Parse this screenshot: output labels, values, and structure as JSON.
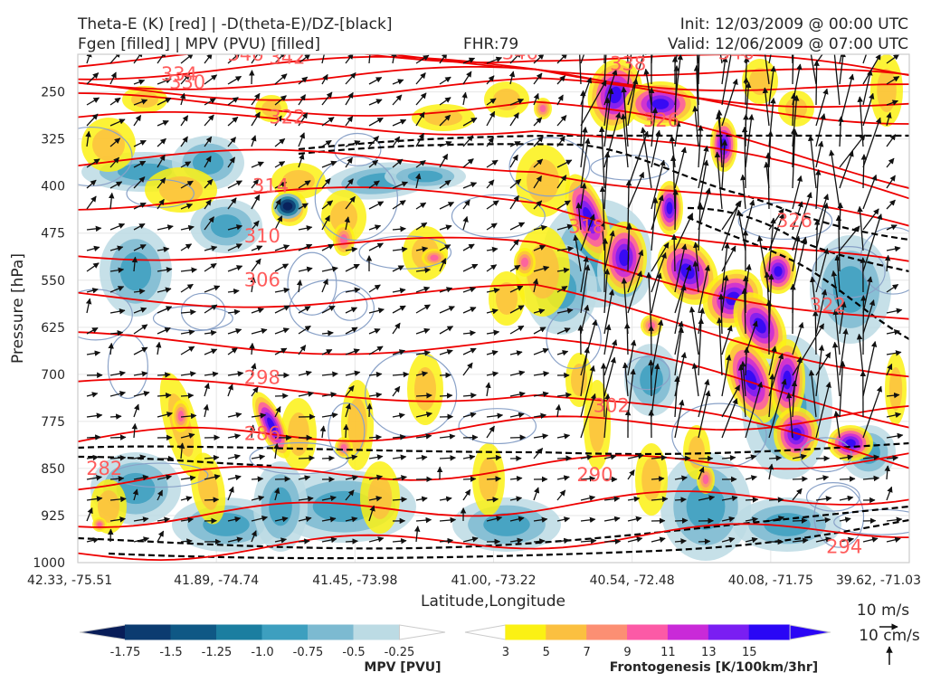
{
  "header": {
    "title_left_1": "Theta-E (K) [red] | -D(theta-E)/DZ-[black]",
    "title_left_2": "Fgen [filled] | MPV (PVU) [filled]",
    "fhr": "FHR:79",
    "init": "Init: 12/03/2009 @ 00:00 UTC",
    "valid": "Valid: 12/06/2009 @ 07:00 UTC"
  },
  "chart_data": {
    "type": "contour",
    "xlabel": "Latitude,Longitude",
    "ylabel": "Pressure [hPa]",
    "x_ticks": [
      "42.33, -75.51",
      "41.89, -74.74",
      "41.45, -73.98",
      "41.00, -73.22",
      "40.54, -72.48",
      "40.08, -71.75",
      "39.62, -71.03"
    ],
    "y_ticks": [
      250,
      325,
      400,
      475,
      550,
      625,
      700,
      775,
      850,
      925,
      1000
    ],
    "ylim": [
      190,
      1000
    ],
    "grid": true,
    "theta_e": {
      "color": "#ee0000",
      "levels": [
        282,
        286,
        290,
        294,
        298,
        302,
        306,
        310,
        314,
        318,
        322,
        326,
        330,
        334,
        338,
        342,
        346
      ],
      "labels": [
        {
          "text": "346",
          "x": 0.18,
          "p": 200
        },
        {
          "text": "342",
          "x": 0.23,
          "p": 205
        },
        {
          "text": "334",
          "x": 0.1,
          "p": 232
        },
        {
          "text": "330",
          "x": 0.11,
          "p": 245
        },
        {
          "text": "322",
          "x": 0.23,
          "p": 300
        },
        {
          "text": "314",
          "x": 0.21,
          "p": 410
        },
        {
          "text": "310",
          "x": 0.2,
          "p": 490
        },
        {
          "text": "306",
          "x": 0.2,
          "p": 560
        },
        {
          "text": "298",
          "x": 0.2,
          "p": 715
        },
        {
          "text": "286",
          "x": 0.2,
          "p": 805
        },
        {
          "text": "282",
          "x": 0.01,
          "p": 860
        },
        {
          "text": "302",
          "x": 0.62,
          "p": 760
        },
        {
          "text": "290",
          "x": 0.6,
          "p": 870
        },
        {
          "text": "294",
          "x": 0.9,
          "p": 985
        },
        {
          "text": "346",
          "x": 0.51,
          "p": 198
        },
        {
          "text": "346",
          "x": 0.77,
          "p": 198
        },
        {
          "text": "338",
          "x": 0.64,
          "p": 215
        },
        {
          "text": "326",
          "x": 0.68,
          "p": 305
        },
        {
          "text": "318",
          "x": 0.59,
          "p": 475
        },
        {
          "text": "326",
          "x": 0.84,
          "p": 465
        },
        {
          "text": "322",
          "x": 0.88,
          "p": 600
        }
      ]
    },
    "stability_dashed": {
      "color": "#000000",
      "style": "dashed"
    },
    "vectors": {
      "color": "#111111",
      "reference_horizontal": "10 m/s",
      "reference_vertical": "10 cm/s"
    },
    "colorbars": [
      {
        "label": "MPV [PVU]",
        "ticks": [
          "-1.75",
          "-1.5",
          "-1.25",
          "-1.0",
          "-0.75",
          "-0.5",
          "-0.25"
        ],
        "colors": [
          "#081d58",
          "#0c3b70",
          "#0f5885",
          "#1b7ea0",
          "#3d9fbf",
          "#7cbad1",
          "#bcdbe4",
          "#ffffff"
        ]
      },
      {
        "label": "Frontogenesis [K/100km/3hr]",
        "ticks": [
          "3",
          "5",
          "7",
          "9",
          "11",
          "13",
          "15"
        ],
        "colors": [
          "#ffffff",
          "#fbf114",
          "#fbc040",
          "#fc8f73",
          "#fc5aa6",
          "#c92ad8",
          "#7a1ef2",
          "#2a06f5",
          "#2a06f5"
        ]
      }
    ],
    "annotations": [
      "10 m/s",
      "10 cm/s"
    ]
  }
}
